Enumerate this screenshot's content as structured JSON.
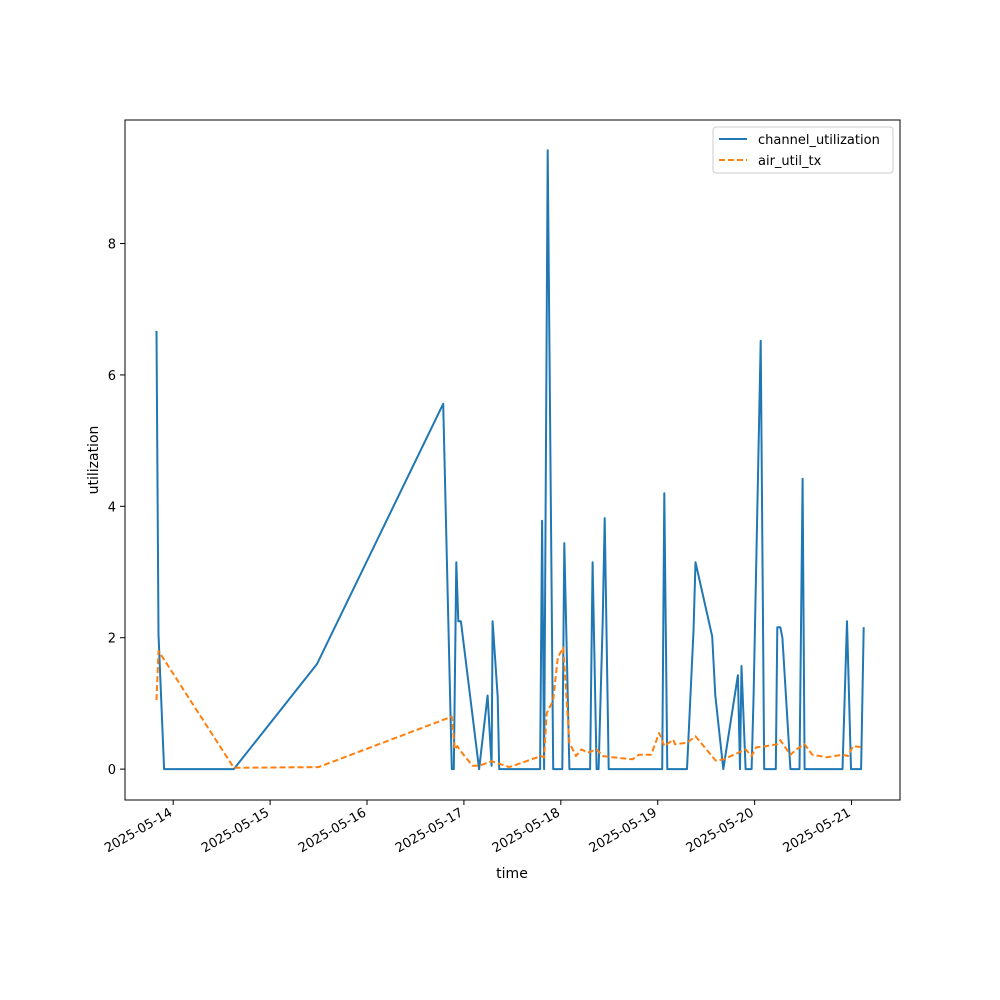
{
  "chart_data": {
    "type": "line",
    "title": "",
    "xlabel": "time",
    "ylabel": "utilization",
    "x_axis_type": "datetime",
    "xlim": [
      "2025-05-13T12:04",
      "2025-05-21T12:00"
    ],
    "ylim": [
      -0.47,
      9.88
    ],
    "x_ticks": [
      "2025-05-14",
      "2025-05-15",
      "2025-05-16",
      "2025-05-17",
      "2025-05-18",
      "2025-05-19",
      "2025-05-20",
      "2025-05-21"
    ],
    "y_ticks": [
      0,
      2,
      4,
      6,
      8
    ],
    "grid": false,
    "legend_position": "top-right",
    "colors": {
      "channel_utilization": "#1f77b4",
      "air_util_tx": "#ff7f0e"
    },
    "series": [
      {
        "name": "channel_utilization",
        "style": "solid",
        "points": [
          [
            "2025-05-13T19:52",
            6.67
          ],
          [
            "2025-05-13T20:22",
            2.05
          ],
          [
            "2025-05-13T21:45",
            0
          ],
          [
            "2025-05-14T15:00",
            0
          ],
          [
            "2025-05-15T11:37",
            1.6
          ],
          [
            "2025-05-16T18:52",
            5.56
          ],
          [
            "2025-05-16T21:00",
            0
          ],
          [
            "2025-05-16T21:30",
            0
          ],
          [
            "2025-05-16T22:07",
            3.15
          ],
          [
            "2025-05-16T22:37",
            2.25
          ],
          [
            "2025-05-16T23:15",
            2.25
          ],
          [
            "2025-05-17T03:45",
            0
          ],
          [
            "2025-05-17T05:52",
            1.12
          ],
          [
            "2025-05-17T06:52",
            0.05
          ],
          [
            "2025-05-17T07:07",
            2.25
          ],
          [
            "2025-05-17T08:22",
            1.1
          ],
          [
            "2025-05-17T08:45",
            0
          ],
          [
            "2025-05-17T18:52",
            0
          ],
          [
            "2025-05-17T19:22",
            3.78
          ],
          [
            "2025-05-17T19:52",
            0
          ],
          [
            "2025-05-17T20:45",
            9.42
          ],
          [
            "2025-05-17T22:07",
            0
          ],
          [
            "2025-05-18T00:22",
            0
          ],
          [
            "2025-05-18T00:52",
            3.44
          ],
          [
            "2025-05-18T02:07",
            0
          ],
          [
            "2025-05-18T07:15",
            0
          ],
          [
            "2025-05-18T07:52",
            3.15
          ],
          [
            "2025-05-18T08:52",
            0
          ],
          [
            "2025-05-18T09:22",
            0
          ],
          [
            "2025-05-18T10:22",
            2.25
          ],
          [
            "2025-05-18T10:52",
            3.82
          ],
          [
            "2025-05-18T11:52",
            0
          ],
          [
            "2025-05-19T01:07",
            0
          ],
          [
            "2025-05-19T01:37",
            4.2
          ],
          [
            "2025-05-19T02:22",
            0
          ],
          [
            "2025-05-19T07:15",
            0
          ],
          [
            "2025-05-19T08:52",
            2.1
          ],
          [
            "2025-05-19T09:22",
            3.15
          ],
          [
            "2025-05-19T13:30",
            2.02
          ],
          [
            "2025-05-19T14:15",
            1.12
          ],
          [
            "2025-05-19T16:15",
            0
          ],
          [
            "2025-05-19T19:52",
            1.43
          ],
          [
            "2025-05-19T20:22",
            0
          ],
          [
            "2025-05-19T20:45",
            1.57
          ],
          [
            "2025-05-19T21:45",
            0
          ],
          [
            "2025-05-19T23:15",
            0
          ],
          [
            "2025-05-19T23:45",
            1.12
          ],
          [
            "2025-05-20T01:30",
            6.52
          ],
          [
            "2025-05-20T02:22",
            0
          ],
          [
            "2025-05-20T05:15",
            0
          ],
          [
            "2025-05-20T05:37",
            2.16
          ],
          [
            "2025-05-20T06:22",
            2.16
          ],
          [
            "2025-05-20T06:52",
            2.0
          ],
          [
            "2025-05-20T08:52",
            0
          ],
          [
            "2025-05-20T11:07",
            0
          ],
          [
            "2025-05-20T11:52",
            4.42
          ],
          [
            "2025-05-20T12:22",
            0
          ],
          [
            "2025-05-20T21:45",
            0
          ],
          [
            "2025-05-20T22:52",
            2.25
          ],
          [
            "2025-05-20T23:52",
            0
          ],
          [
            "2025-05-21T02:22",
            0
          ],
          [
            "2025-05-21T03:00",
            2.16
          ]
        ]
      },
      {
        "name": "air_util_tx",
        "style": "dashed",
        "points": [
          [
            "2025-05-13T19:52",
            1.05
          ],
          [
            "2025-05-13T20:22",
            1.8
          ],
          [
            "2025-05-14T15:00",
            0.02
          ],
          [
            "2025-05-15T12:00",
            0.03
          ],
          [
            "2025-05-16T21:00",
            0.8
          ],
          [
            "2025-05-16T21:45",
            0.3
          ],
          [
            "2025-05-16T22:22",
            0.35
          ],
          [
            "2025-05-16T23:07",
            0.28
          ],
          [
            "2025-05-17T02:07",
            0.05
          ],
          [
            "2025-05-17T03:45",
            0.05
          ],
          [
            "2025-05-17T06:52",
            0.12
          ],
          [
            "2025-05-17T11:15",
            0.03
          ],
          [
            "2025-05-17T19:07",
            0.2
          ],
          [
            "2025-05-17T19:52",
            0.18
          ],
          [
            "2025-05-17T20:30",
            0.85
          ],
          [
            "2025-05-17T22:07",
            1.05
          ],
          [
            "2025-05-17T23:15",
            1.7
          ],
          [
            "2025-05-18T00:37",
            1.85
          ],
          [
            "2025-05-18T02:07",
            0.4
          ],
          [
            "2025-05-18T03:45",
            0.2
          ],
          [
            "2025-05-18T05:07",
            0.3
          ],
          [
            "2025-05-18T06:37",
            0.25
          ],
          [
            "2025-05-18T08:52",
            0.3
          ],
          [
            "2025-05-18T10:22",
            0.2
          ],
          [
            "2025-05-18T12:45",
            0.18
          ],
          [
            "2025-05-18T17:45",
            0.15
          ],
          [
            "2025-05-18T19:22",
            0.22
          ],
          [
            "2025-05-18T22:22",
            0.22
          ],
          [
            "2025-05-19T00:22",
            0.55
          ],
          [
            "2025-05-19T01:37",
            0.35
          ],
          [
            "2025-05-19T03:52",
            0.45
          ],
          [
            "2025-05-19T04:15",
            0.38
          ],
          [
            "2025-05-19T07:15",
            0.4
          ],
          [
            "2025-05-19T09:22",
            0.5
          ],
          [
            "2025-05-19T14:22",
            0.13
          ],
          [
            "2025-05-19T16:22",
            0.15
          ],
          [
            "2025-05-19T21:45",
            0.3
          ],
          [
            "2025-05-19T23:15",
            0.2
          ],
          [
            "2025-05-20T00:22",
            0.33
          ],
          [
            "2025-05-20T03:00",
            0.35
          ],
          [
            "2025-05-20T05:37",
            0.38
          ],
          [
            "2025-05-20T06:22",
            0.44
          ],
          [
            "2025-05-20T08:52",
            0.22
          ],
          [
            "2025-05-20T10:22",
            0.3
          ],
          [
            "2025-05-20T12:22",
            0.38
          ],
          [
            "2025-05-20T14:15",
            0.22
          ],
          [
            "2025-05-20T17:52",
            0.18
          ],
          [
            "2025-05-20T21:45",
            0.22
          ],
          [
            "2025-05-20T23:07",
            0.2
          ],
          [
            "2025-05-21T00:22",
            0.35
          ],
          [
            "2025-05-21T03:00",
            0.33
          ]
        ]
      }
    ]
  }
}
